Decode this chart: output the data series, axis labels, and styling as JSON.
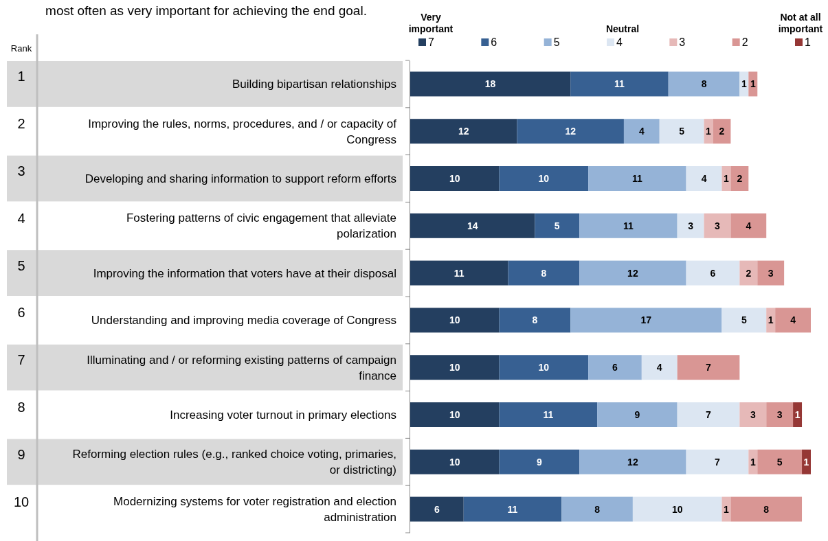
{
  "chart_data": {
    "type": "bar",
    "orientation": "horizontal",
    "stacked": true,
    "data_labels": true,
    "title": "most often as very important for achieving the end goal.",
    "ylabel": "Rank",
    "legend": "top right",
    "categories": [
      "Building bipartisan relationships",
      "Improving the rules, norms, procedures, and / or capacity of Congress",
      "Developing and sharing information to support reform efforts",
      "Fostering patterns of civic engagement that alleviate polarization",
      "Improving the information that voters have at their disposal",
      "Understanding and improving media coverage of Congress",
      "Illuminating and / or reforming existing patterns of campaign finance",
      "Increasing voter turnout in primary elections",
      "Reforming election rules (e.g., ranked choice voting, primaries, or districting)",
      "Modernizing systems for voter registration and election administration"
    ],
    "series": [
      {
        "name": "7",
        "color": "#243f60",
        "values": [
          18,
          12,
          10,
          14,
          11,
          10,
          10,
          10,
          10,
          6
        ]
      },
      {
        "name": "6",
        "color": "#376092",
        "values": [
          11,
          12,
          10,
          5,
          8,
          8,
          10,
          11,
          9,
          11
        ]
      },
      {
        "name": "5",
        "color": "#95b3d7",
        "values": [
          8,
          4,
          11,
          11,
          12,
          17,
          6,
          9,
          12,
          8
        ]
      },
      {
        "name": "4",
        "color": "#dce6f2",
        "values": [
          1,
          5,
          4,
          3,
          6,
          5,
          4,
          7,
          7,
          10
        ]
      },
      {
        "name": "3",
        "color": "#e6b9b8",
        "values": [
          null,
          1,
          1,
          3,
          2,
          1,
          null,
          3,
          1,
          1
        ]
      },
      {
        "name": "2",
        "color": "#d99694",
        "values": [
          1,
          2,
          2,
          4,
          3,
          4,
          7,
          3,
          5,
          8
        ]
      },
      {
        "name": "1",
        "color": "#953735",
        "values": [
          null,
          null,
          null,
          null,
          null,
          null,
          null,
          1,
          1,
          null
        ]
      }
    ],
    "annotations": [
      "1",
      "2",
      "3",
      "4",
      "5",
      "6",
      "7",
      "8",
      "9",
      "10",
      "Very important",
      "Neutral",
      "Not at all important"
    ]
  }
}
